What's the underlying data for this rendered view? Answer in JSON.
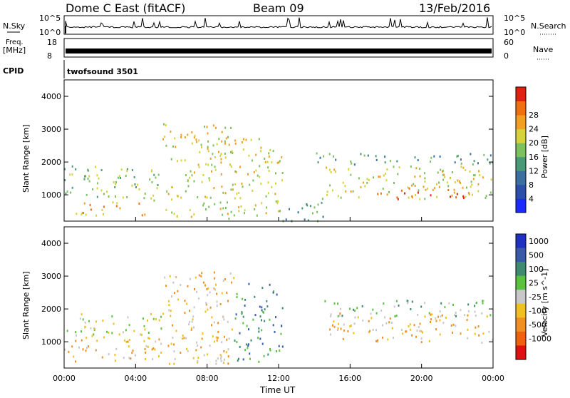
{
  "header": {
    "station": "Dome C East (fitACF)",
    "beam": "Beam 09",
    "date": "13/Feb/2016"
  },
  "strips": {
    "nsky_label": "N.Sky",
    "nsky_ticks": [
      "10^5",
      "10^0"
    ],
    "nsearch_label": "N.Search",
    "nsearch_ticks": [
      "10^5",
      "10^0"
    ],
    "freq_label": "Freq.",
    "freq_unit": "[MHz]",
    "freq_ticks": [
      "18",
      "8"
    ],
    "nave_label": "Nave",
    "nave_ticks": [
      "60",
      "0"
    ],
    "cpid_label": "CPID",
    "cpid_value": "twofsound 3501"
  },
  "chart_data": [
    {
      "type": "heatmap",
      "title": "",
      "xlabel": "",
      "ylabel": "Slant Range [km]",
      "xlim": [
        0,
        24
      ],
      "ylim": [
        200,
        4500
      ],
      "yticks": [
        "1000",
        "2000",
        "3000",
        "4000"
      ],
      "colorbar": {
        "label": "Power [dB]",
        "ticks": [
          "4",
          "8",
          "12",
          "16",
          "20",
          "24",
          "28"
        ],
        "range": [
          0,
          30
        ],
        "colors": [
          "#1b2bff",
          "#2e4fa8",
          "#3a6fa0",
          "#4a9a78",
          "#7dc060",
          "#d6d23a",
          "#f0a020",
          "#f07010",
          "#e02010"
        ]
      },
      "regions": [
        {
          "t": [
            0,
            5.5
          ],
          "r": [
            800,
            1900
          ],
          "level": 16
        },
        {
          "t": [
            0.5,
            4.5
          ],
          "r": [
            400,
            800
          ],
          "level": 22
        },
        {
          "t": [
            5.5,
            9.5
          ],
          "r": [
            300,
            3200
          ],
          "level": 18
        },
        {
          "t": [
            9.5,
            12.2
          ],
          "r": [
            400,
            2800
          ],
          "level": 20
        },
        {
          "t": [
            12.2,
            14.5
          ],
          "r": [
            200,
            1000
          ],
          "level": 12
        },
        {
          "t": [
            14.5,
            24
          ],
          "r": [
            900,
            1900
          ],
          "level": 20
        },
        {
          "t": [
            17.5,
            22.5
          ],
          "r": [
            900,
            1300
          ],
          "level": 27
        },
        {
          "t": [
            14,
            24
          ],
          "r": [
            1950,
            2300
          ],
          "level": 10
        }
      ]
    },
    {
      "type": "heatmap",
      "title": "",
      "xlabel": "Time UT",
      "ylabel": "Slant Range [km]",
      "xlim": [
        0,
        24
      ],
      "ylim": [
        200,
        4500
      ],
      "xticks": [
        "00:00",
        "04:00",
        "08:00",
        "12:00",
        "16:00",
        "20:00",
        "00:00"
      ],
      "yticks": [
        "1000",
        "2000",
        "3000",
        "4000"
      ],
      "colorbar": {
        "label": "Velocity [m s^-1]",
        "ticks": [
          "1000",
          "500",
          "100",
          "25",
          "-25",
          "-100",
          "-500",
          "-1000"
        ],
        "colors": [
          "#2030c0",
          "#3a5aa8",
          "#3f8a70",
          "#5cc040",
          "#c8c8c8",
          "#f0c020",
          "#f09020",
          "#f06010",
          "#e01010"
        ]
      },
      "regions": [
        {
          "t": [
            0,
            5.5
          ],
          "r": [
            1200,
            1900
          ],
          "level": "-25"
        },
        {
          "t": [
            0,
            5.5
          ],
          "r": [
            400,
            1200
          ],
          "level": "-100"
        },
        {
          "t": [
            5.5,
            9.5
          ],
          "r": [
            300,
            3200
          ],
          "level": "-100"
        },
        {
          "t": [
            9.5,
            12.2
          ],
          "r": [
            400,
            2800
          ],
          "level": "100"
        },
        {
          "t": [
            14.5,
            24
          ],
          "r": [
            1000,
            1900
          ],
          "level": "-100"
        },
        {
          "t": [
            14.5,
            24
          ],
          "r": [
            1800,
            2300
          ],
          "level": "25"
        }
      ]
    }
  ],
  "xaxis_title": "Time UT",
  "scatter_note": ""
}
